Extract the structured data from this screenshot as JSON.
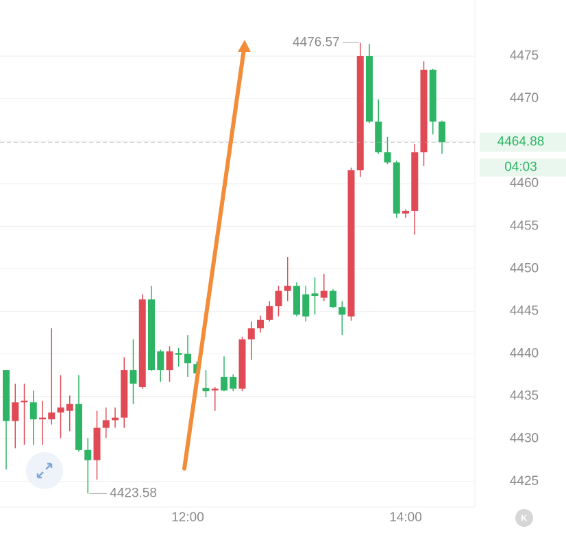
{
  "chart_data": {
    "type": "candlestick",
    "categories": [
      null,
      null,
      null,
      null,
      null,
      null,
      null,
      null,
      null,
      null,
      null,
      null,
      null,
      null,
      null,
      null,
      null,
      null,
      null,
      null,
      "12:00",
      null,
      null,
      null,
      null,
      null,
      null,
      null,
      null,
      null,
      null,
      null,
      null,
      null,
      null,
      null,
      null,
      null,
      null,
      null,
      null,
      null,
      null,
      null,
      "14:00",
      null,
      null,
      null,
      null
    ],
    "open": [
      4438.1,
      4432.1,
      4434.3,
      4434.3,
      4432.3,
      4432.3,
      4433.1,
      4433.3,
      4434.1,
      4428.7,
      4427.5,
      4431.3,
      4432.2,
      4432.5,
      4438.1,
      4436.1,
      4446.4,
      4440.3,
      4438.1,
      4440.1,
      4440.0,
      4438.8,
      4436.0,
      4435.7,
      4437.3,
      4437.3,
      4435.9,
      4441.7,
      4443.0,
      4444.0,
      4445.6,
      4447.4,
      4448.0,
      4447.0,
      4447.1,
      4446.6,
      4447.4,
      4445.5,
      4444.4,
      4461.6,
      4475.0,
      4467.3,
      4463.7,
      4462.5,
      4456.5,
      4456.8,
      4463.7,
      4473.4,
      4467.3
    ],
    "high": [
      4438.1,
      4436.5,
      4436.5,
      4435.7,
      4434.5,
      4443.0,
      4437.5,
      4435.1,
      4437.5,
      4430.1,
      4433.3,
      4433.7,
      4433.7,
      4439.6,
      4441.7,
      4447.0,
      4448.0,
      4440.5,
      4440.9,
      4440.7,
      4442.2,
      4439.1,
      4438.1,
      4436.1,
      4439.7,
      4437.6,
      4442.0,
      4443.8,
      4444.5,
      4446.2,
      4448.0,
      4451.4,
      4448.4,
      4448.0,
      4449.0,
      4449.4,
      4447.6,
      4446.2,
      4461.9,
      4476.57,
      4476.45,
      4469.9,
      4465.5,
      4462.7,
      4457.0,
      4464.7,
      4474.4,
      4473.5,
      4467.4
    ],
    "low": [
      4426.4,
      4428.9,
      4429.3,
      4429.3,
      4429.3,
      4431.7,
      4430.1,
      4430.9,
      4428.5,
      4423.58,
      4425.2,
      4430.1,
      4431.3,
      4431.3,
      4434.1,
      4435.9,
      4438.0,
      4436.7,
      4436.7,
      4438.5,
      4437.3,
      4436.9,
      4434.9,
      4433.3,
      4435.6,
      4435.6,
      4435.6,
      4439.3,
      4442.5,
      4443.8,
      4444.4,
      4446.2,
      4444.4,
      4443.8,
      4444.6,
      4446.2,
      4445.4,
      4442.2,
      4443.9,
      4460.8,
      4467.1,
      4463.5,
      4462.3,
      4456.0,
      4456.0,
      4454.0,
      4462.1,
      4465.8,
      4463.5
    ],
    "close": [
      4432.1,
      4434.3,
      4434.5,
      4432.3,
      4432.5,
      4433.1,
      4433.7,
      4434.1,
      4428.7,
      4427.5,
      4431.3,
      4432.2,
      4432.5,
      4438.1,
      4436.5,
      4446.4,
      4438.1,
      4438.1,
      4440.3,
      4439.9,
      4438.9,
      4437.7,
      4435.6,
      4435.9,
      4435.7,
      4435.9,
      4441.7,
      4443.0,
      4444.0,
      4445.6,
      4447.4,
      4448.0,
      4444.6,
      4444.4,
      4446.8,
      4447.4,
      4445.5,
      4444.6,
      4461.6,
      4475.0,
      4467.3,
      4463.7,
      4462.5,
      4456.5,
      4456.8,
      4463.7,
      4473.4,
      4467.3,
      4464.88
    ],
    "up_color": "#e04a55",
    "down_color": "#2eb465",
    "ylim": [
      4422,
      4481.6
    ],
    "yticks": [
      4425,
      4430,
      4435,
      4440,
      4445,
      4450,
      4455,
      4460,
      4465,
      4470,
      4475
    ],
    "grid": true,
    "max_label": "4476.57",
    "min_label": "4423.58",
    "last_price_label": "4464.88",
    "countdown": "04:03",
    "corner_button": "K"
  }
}
